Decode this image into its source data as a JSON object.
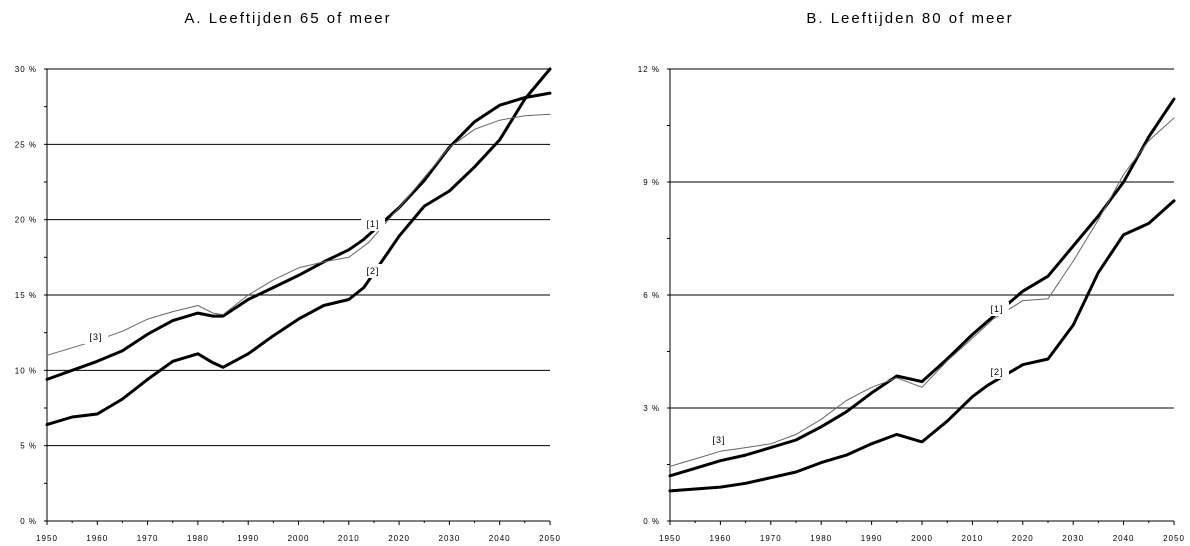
{
  "chart_data": [
    {
      "type": "line",
      "title": "A. Leeftijden 65 of meer",
      "xlabel": "",
      "ylabel": "",
      "xlim": [
        1950,
        2050
      ],
      "ylim": [
        0,
        30
      ],
      "yticks": [
        0,
        5,
        10,
        15,
        20,
        25,
        30
      ],
      "ytick_labels": [
        "0 %",
        "5 %",
        "10 %",
        "15 %",
        "20 %",
        "25 %",
        "30 %"
      ],
      "xticks": [
        1950,
        1960,
        1970,
        1980,
        1990,
        2000,
        2010,
        2020,
        2030,
        2040,
        2050
      ],
      "xtick_labels": [
        "1950",
        "1960",
        "1970",
        "1980",
        "1990",
        "2000",
        "2010",
        "2020",
        "2030",
        "2040",
        "2050"
      ],
      "grid": "horizontal",
      "series": [
        {
          "name": "[1]",
          "style": "thick",
          "x": [
            1950,
            1955,
            1960,
            1965,
            1970,
            1975,
            1980,
            1983,
            1985,
            1990,
            1995,
            2000,
            2005,
            2010,
            2013,
            2020,
            2025,
            2030,
            2035,
            2040,
            2045,
            2050
          ],
          "y": [
            9.4,
            10.0,
            10.6,
            11.3,
            12.4,
            13.3,
            13.8,
            13.6,
            13.6,
            14.7,
            15.5,
            16.3,
            17.2,
            18.0,
            18.7,
            20.8,
            22.6,
            24.8,
            26.5,
            27.6,
            28.1,
            28.4
          ]
        },
        {
          "name": "[2]",
          "style": "thick",
          "x": [
            1950,
            1955,
            1960,
            1965,
            1970,
            1975,
            1980,
            1983,
            1985,
            1990,
            1995,
            2000,
            2005,
            2010,
            2013,
            2020,
            2025,
            2030,
            2035,
            2040,
            2045,
            2050
          ],
          "y": [
            6.4,
            6.9,
            7.1,
            8.1,
            9.4,
            10.6,
            11.1,
            10.5,
            10.2,
            11.1,
            12.3,
            13.4,
            14.3,
            14.7,
            15.5,
            18.9,
            20.9,
            21.9,
            23.5,
            25.3,
            28.0,
            30.0
          ]
        },
        {
          "name": "[3]",
          "style": "thin",
          "x": [
            1950,
            1955,
            1960,
            1965,
            1970,
            1975,
            1980,
            1983,
            1985,
            1990,
            1995,
            2000,
            2005,
            2010,
            2014,
            2020,
            2025,
            2030,
            2035,
            2040,
            2045,
            2050
          ],
          "y": [
            11.0,
            11.5,
            12.0,
            12.6,
            13.4,
            13.9,
            14.3,
            13.8,
            13.7,
            15.0,
            16.0,
            16.8,
            17.2,
            17.5,
            18.5,
            20.8,
            22.8,
            24.8,
            26.0,
            26.6,
            26.9,
            27.0
          ]
        }
      ]
    },
    {
      "type": "line",
      "title": "B. Leeftijden 80 of meer",
      "xlabel": "",
      "ylabel": "",
      "xlim": [
        1950,
        2050
      ],
      "ylim": [
        0,
        12
      ],
      "yticks": [
        0,
        3,
        6,
        9,
        12
      ],
      "ytick_labels": [
        "0 %",
        "3 %",
        "6 %",
        "9 %",
        "12 %"
      ],
      "xticks": [
        1950,
        1960,
        1970,
        1980,
        1990,
        2000,
        2010,
        2020,
        2030,
        2040,
        2050
      ],
      "xtick_labels": [
        "1950",
        "1960",
        "1970",
        "1980",
        "1990",
        "2000",
        "2010",
        "2020",
        "2030",
        "2040",
        "2050"
      ],
      "grid": "horizontal",
      "series": [
        {
          "name": "[1]",
          "style": "thick",
          "x": [
            1950,
            1955,
            1960,
            1965,
            1970,
            1975,
            1980,
            1985,
            1990,
            1995,
            2000,
            2005,
            2010,
            2013,
            2020,
            2025,
            2030,
            2035,
            2040,
            2045,
            2050
          ],
          "y": [
            1.2,
            1.4,
            1.6,
            1.75,
            1.95,
            2.15,
            2.5,
            2.9,
            3.4,
            3.85,
            3.7,
            4.3,
            4.95,
            5.3,
            6.1,
            6.5,
            7.3,
            8.1,
            9.0,
            10.2,
            11.2
          ]
        },
        {
          "name": "[2]",
          "style": "thick",
          "x": [
            1950,
            1955,
            1960,
            1965,
            1970,
            1975,
            1980,
            1985,
            1990,
            1995,
            2000,
            2005,
            2010,
            2013,
            2020,
            2025,
            2030,
            2035,
            2040,
            2045,
            2050
          ],
          "y": [
            0.8,
            0.85,
            0.9,
            1.0,
            1.15,
            1.3,
            1.55,
            1.75,
            2.05,
            2.3,
            2.1,
            2.65,
            3.3,
            3.6,
            4.15,
            4.3,
            5.2,
            6.6,
            7.6,
            7.9,
            8.5
          ]
        },
        {
          "name": "[3]",
          "style": "thin",
          "x": [
            1950,
            1955,
            1960,
            1965,
            1970,
            1975,
            1980,
            1985,
            1990,
            1995,
            2000,
            2005,
            2010,
            2014,
            2020,
            2025,
            2030,
            2035,
            2040,
            2045,
            2050
          ],
          "y": [
            1.45,
            1.65,
            1.85,
            1.95,
            2.05,
            2.3,
            2.7,
            3.2,
            3.55,
            3.8,
            3.55,
            4.25,
            4.85,
            5.35,
            5.85,
            5.9,
            6.9,
            8.0,
            9.2,
            10.1,
            10.7
          ]
        }
      ]
    }
  ]
}
